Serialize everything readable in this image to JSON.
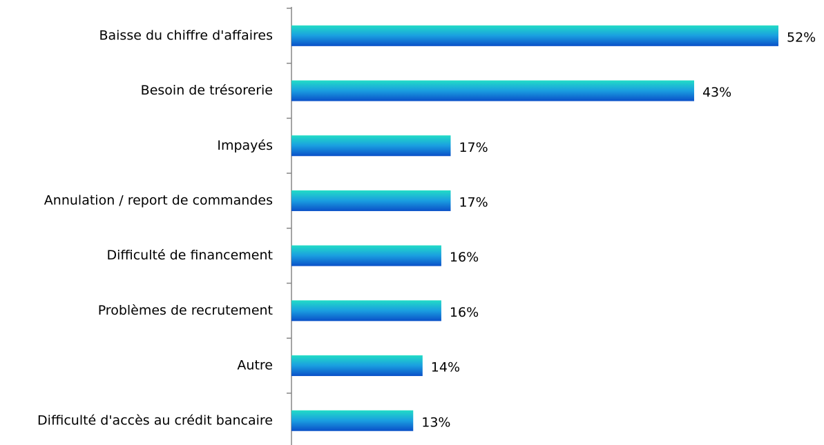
{
  "chart_data": {
    "type": "barh",
    "categories": [
      "Baisse du chiffre d'affaires",
      "Besoin de trésorerie",
      "Impayés",
      "Annulation / report de commandes",
      "Difficulté de financement",
      "Problèmes de recrutement",
      "Autre",
      "Difficulté d'accès au crédit bancaire"
    ],
    "values": [
      52,
      43,
      17,
      17,
      16,
      16,
      14,
      13
    ],
    "value_labels": [
      "52%",
      "43%",
      "17%",
      "17%",
      "16%",
      "16%",
      "14%",
      "13%"
    ],
    "color": "#1a8fdc"
  }
}
